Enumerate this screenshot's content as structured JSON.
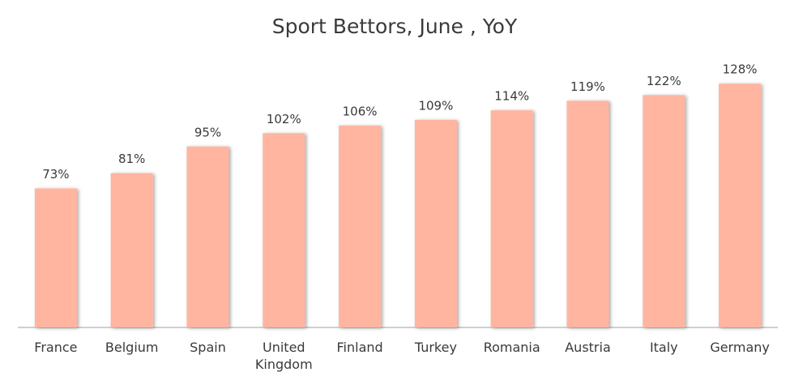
{
  "chart_data": {
    "type": "bar",
    "title": "Sport Bettors, June , YoY",
    "categories": [
      "France",
      "Belgium",
      "Spain",
      "United Kingdom",
      "Finland",
      "Turkey",
      "Romania",
      "Austria",
      "Italy",
      "Germany"
    ],
    "values": [
      73,
      81,
      95,
      102,
      106,
      109,
      114,
      119,
      122,
      128
    ],
    "value_labels": [
      "73%",
      "81%",
      "95%",
      "102%",
      "106%",
      "109%",
      "114%",
      "119%",
      "122%",
      "128%"
    ],
    "color": "#ffb5a0"
  }
}
